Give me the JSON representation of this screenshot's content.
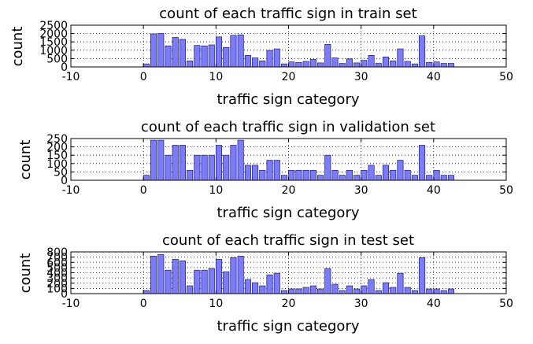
{
  "figure": {
    "bar_color": "#7b7bff",
    "bar_edge_color": "#1a1a7a"
  },
  "chart_data": [
    {
      "type": "bar",
      "title": "count of each traffic sign in train set",
      "xlabel": "traffic sign category",
      "ylabel": "count",
      "xlim": [
        -10,
        50
      ],
      "ylim": [
        0,
        2500
      ],
      "xticks": [
        -10,
        0,
        10,
        20,
        30,
        40,
        50
      ],
      "yticks": [
        0,
        500,
        1000,
        1500,
        2000,
        2500
      ],
      "grid": true,
      "categories": [
        0,
        1,
        2,
        3,
        4,
        5,
        6,
        7,
        8,
        9,
        10,
        11,
        12,
        13,
        14,
        15,
        16,
        17,
        18,
        19,
        20,
        21,
        22,
        23,
        24,
        25,
        26,
        27,
        28,
        29,
        30,
        31,
        32,
        33,
        34,
        35,
        36,
        37,
        38,
        39,
        40,
        41,
        42
      ],
      "values": [
        180,
        1980,
        2010,
        1260,
        1770,
        1650,
        360,
        1290,
        1260,
        1320,
        1800,
        1170,
        1890,
        1920,
        690,
        540,
        360,
        990,
        1080,
        180,
        300,
        270,
        330,
        450,
        240,
        1350,
        540,
        210,
        480,
        240,
        390,
        690,
        210,
        599,
        360,
        1080,
        330,
        180,
        1860,
        270,
        300,
        210,
        210
      ]
    },
    {
      "type": "bar",
      "title": "count of each traffic sign in validation set",
      "xlabel": "traffic sign category",
      "ylabel": "count",
      "xlim": [
        -10,
        50
      ],
      "ylim": [
        0,
        250
      ],
      "xticks": [
        -10,
        0,
        10,
        20,
        30,
        40,
        50
      ],
      "yticks": [
        0,
        50,
        100,
        150,
        200,
        250
      ],
      "grid": true,
      "categories": [
        0,
        1,
        2,
        3,
        4,
        5,
        6,
        7,
        8,
        9,
        10,
        11,
        12,
        13,
        14,
        15,
        16,
        17,
        18,
        19,
        20,
        21,
        22,
        23,
        24,
        25,
        26,
        27,
        28,
        29,
        30,
        31,
        32,
        33,
        34,
        35,
        36,
        37,
        38,
        39,
        40,
        41,
        42
      ],
      "values": [
        30,
        240,
        240,
        150,
        210,
        210,
        60,
        150,
        150,
        150,
        210,
        150,
        210,
        240,
        90,
        90,
        60,
        120,
        120,
        30,
        60,
        60,
        60,
        60,
        30,
        150,
        60,
        30,
        60,
        30,
        60,
        90,
        30,
        90,
        60,
        120,
        60,
        30,
        210,
        30,
        60,
        30,
        30
      ]
    },
    {
      "type": "bar",
      "title": "count of each traffic sign in test set",
      "xlabel": "traffic sign category",
      "ylabel": "count",
      "xlim": [
        -10,
        50
      ],
      "ylim": [
        0,
        800
      ],
      "xticks": [
        -10,
        0,
        10,
        20,
        30,
        40,
        50
      ],
      "yticks": [
        0,
        100,
        200,
        300,
        400,
        500,
        600,
        700,
        800
      ],
      "grid": true,
      "categories": [
        0,
        1,
        2,
        3,
        4,
        5,
        6,
        7,
        8,
        9,
        10,
        11,
        12,
        13,
        14,
        15,
        16,
        17,
        18,
        19,
        20,
        21,
        22,
        23,
        24,
        25,
        26,
        27,
        28,
        29,
        30,
        31,
        32,
        33,
        34,
        35,
        36,
        37,
        38,
        39,
        40,
        41,
        42
      ],
      "values": [
        60,
        720,
        750,
        450,
        660,
        630,
        150,
        450,
        450,
        480,
        660,
        420,
        690,
        720,
        270,
        210,
        150,
        360,
        390,
        60,
        90,
        90,
        120,
        150,
        90,
        480,
        180,
        60,
        150,
        90,
        150,
        270,
        60,
        210,
        120,
        390,
        120,
        60,
        690,
        90,
        90,
        60,
        90
      ]
    }
  ]
}
